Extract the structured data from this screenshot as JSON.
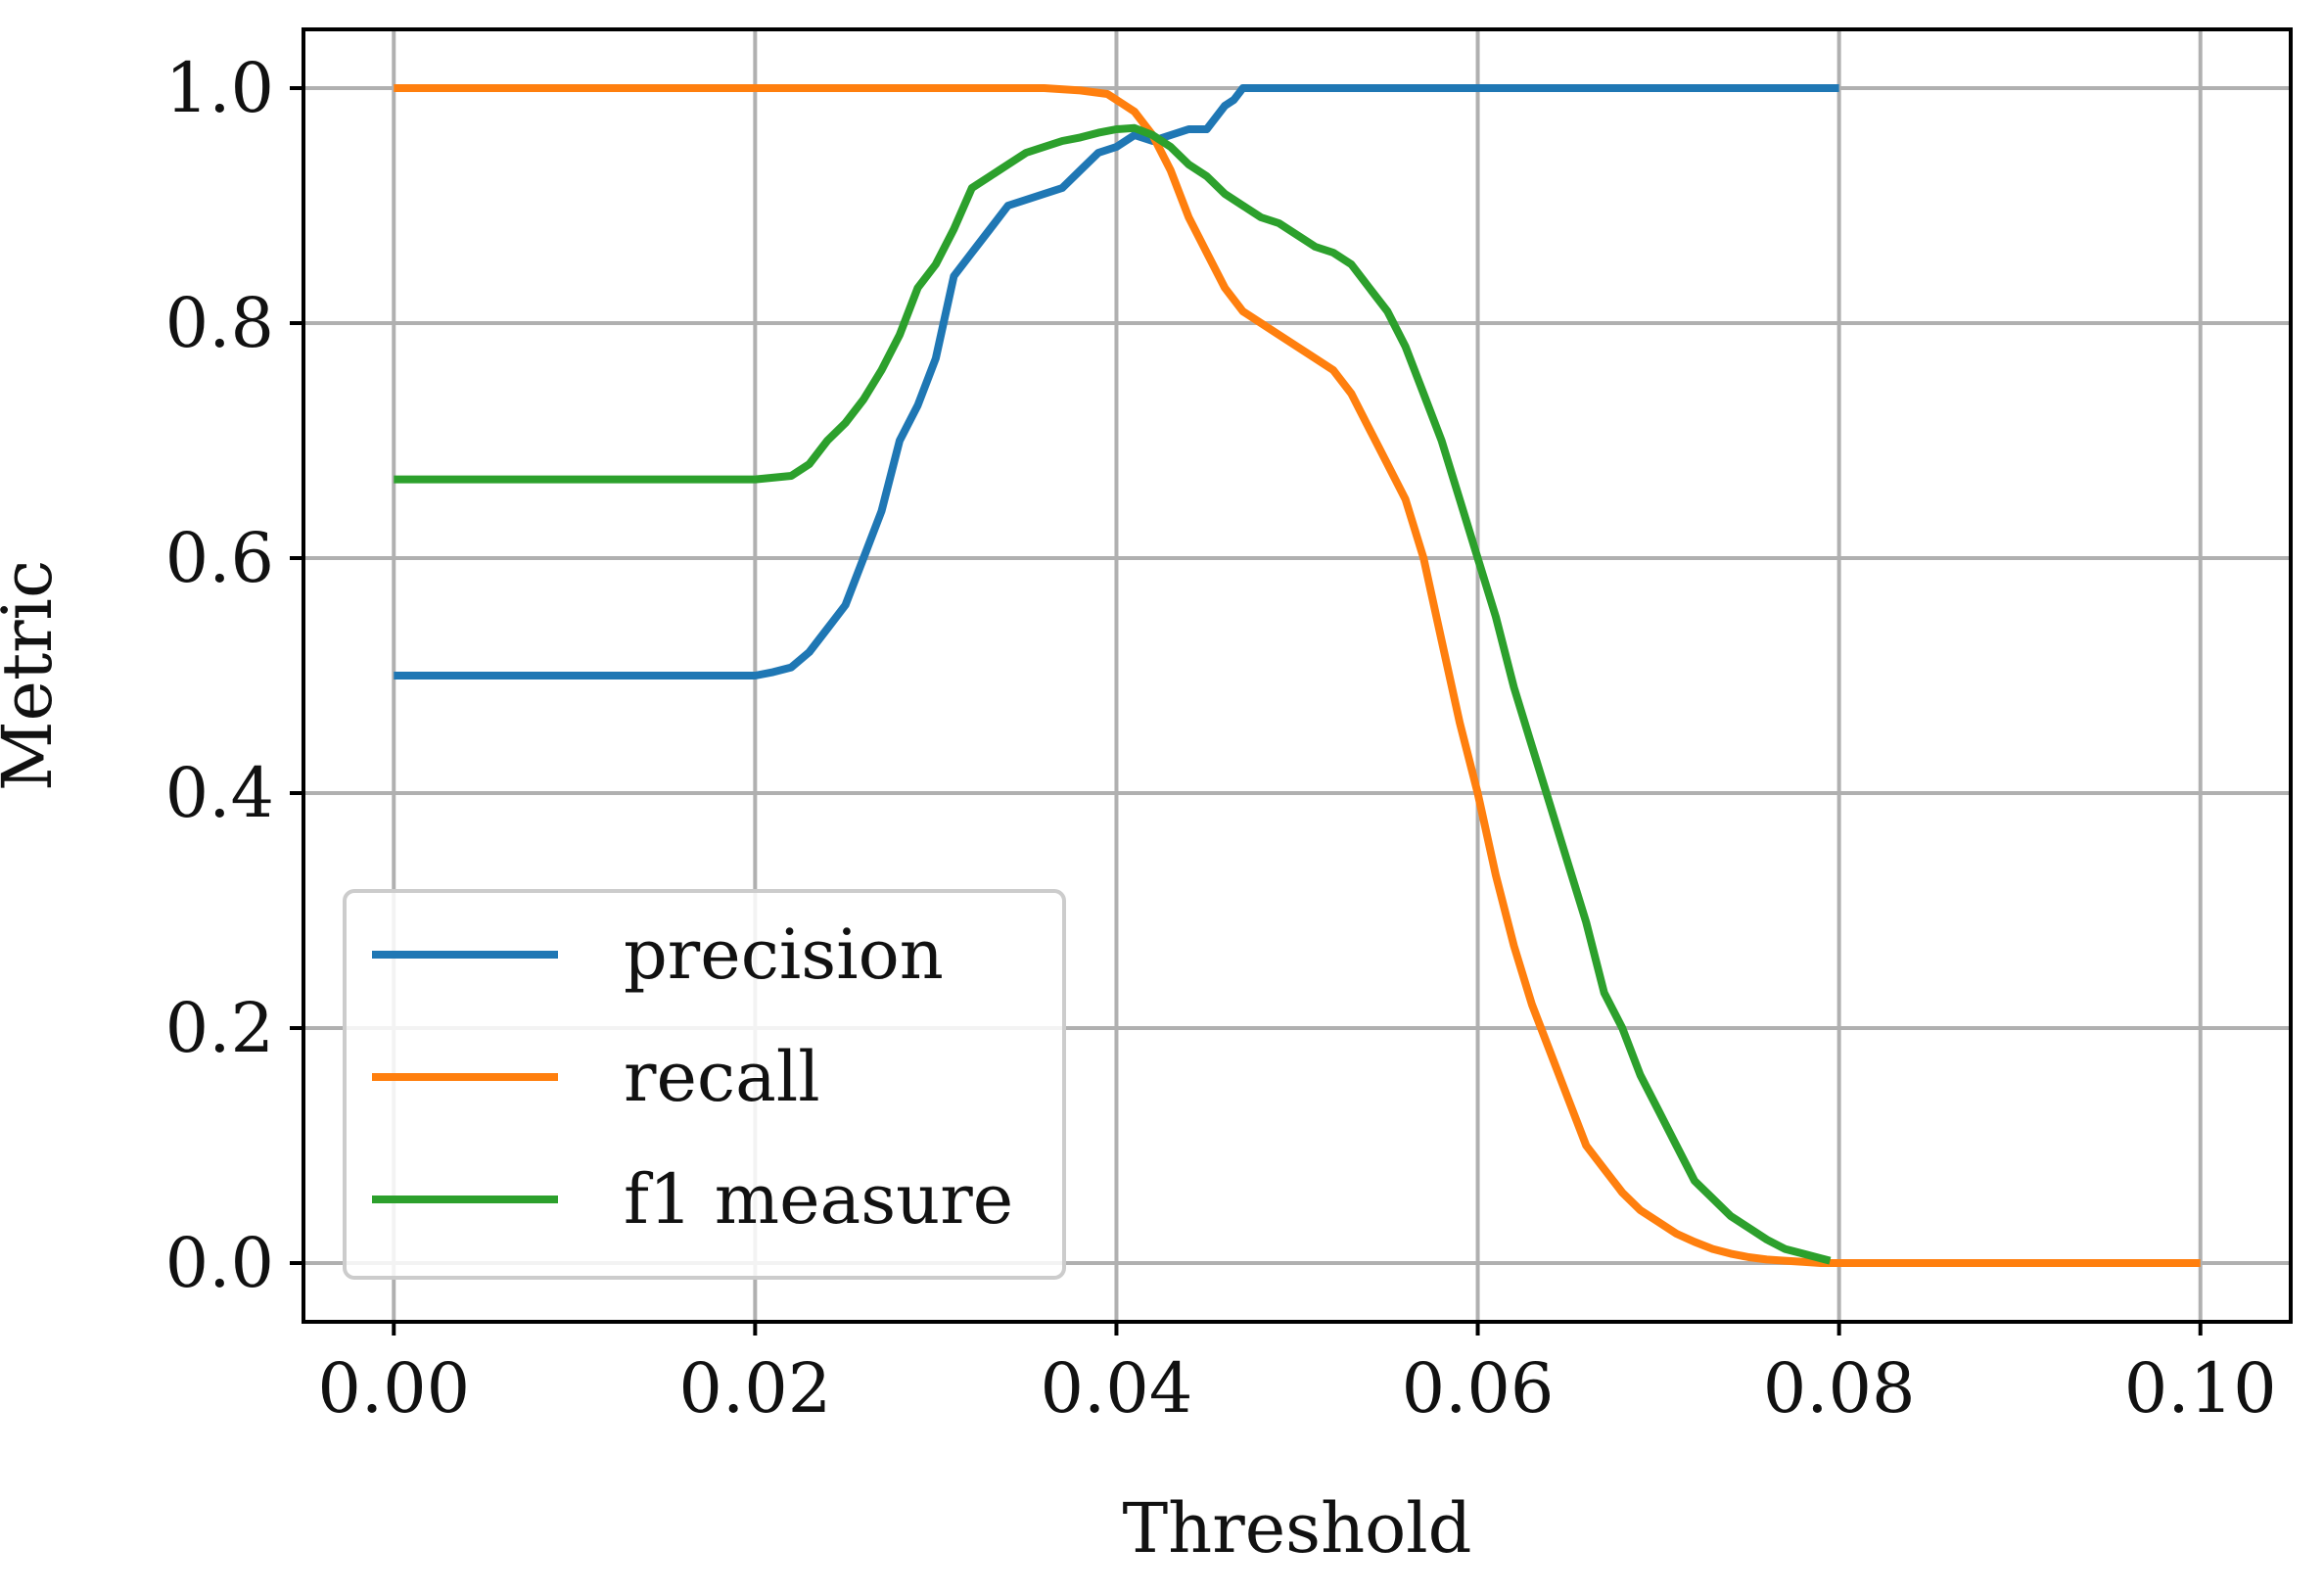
{
  "chart_data": {
    "type": "line",
    "title": "",
    "xlabel": "Threshold",
    "ylabel": "Metric",
    "xlim": [
      -0.005,
      0.105
    ],
    "ylim": [
      -0.05,
      1.05
    ],
    "xticks": [
      0.0,
      0.02,
      0.04,
      0.06,
      0.08,
      0.1
    ],
    "xtick_labels": [
      "0.00",
      "0.02",
      "0.04",
      "0.06",
      "0.08",
      "0.10"
    ],
    "yticks": [
      0.0,
      0.2,
      0.4,
      0.6,
      0.8,
      1.0
    ],
    "ytick_labels": [
      "0.0",
      "0.2",
      "0.4",
      "0.6",
      "0.8",
      "1.0"
    ],
    "grid": true,
    "legend_position": "lower-left",
    "series": [
      {
        "name": "precision",
        "color": "#1f77b4",
        "x": [
          0.0,
          0.02,
          0.021,
          0.022,
          0.023,
          0.024,
          0.025,
          0.026,
          0.027,
          0.028,
          0.029,
          0.03,
          0.031,
          0.032,
          0.033,
          0.034,
          0.035,
          0.036,
          0.037,
          0.038,
          0.039,
          0.04,
          0.041,
          0.042,
          0.043,
          0.044,
          0.045,
          0.046,
          0.0465,
          0.047,
          0.08
        ],
        "y": [
          0.5,
          0.5,
          0.503,
          0.507,
          0.52,
          0.54,
          0.56,
          0.6,
          0.64,
          0.7,
          0.73,
          0.77,
          0.84,
          0.86,
          0.88,
          0.9,
          0.905,
          0.91,
          0.915,
          0.93,
          0.945,
          0.95,
          0.96,
          0.955,
          0.96,
          0.965,
          0.965,
          0.985,
          0.99,
          1.0,
          1.0
        ]
      },
      {
        "name": "recall",
        "color": "#ff7f0e",
        "x": [
          0.0,
          0.036,
          0.038,
          0.0395,
          0.04,
          0.041,
          0.042,
          0.043,
          0.044,
          0.045,
          0.046,
          0.047,
          0.048,
          0.049,
          0.05,
          0.051,
          0.052,
          0.053,
          0.054,
          0.055,
          0.056,
          0.057,
          0.058,
          0.059,
          0.06,
          0.061,
          0.062,
          0.063,
          0.064,
          0.065,
          0.066,
          0.067,
          0.068,
          0.069,
          0.07,
          0.071,
          0.072,
          0.073,
          0.074,
          0.075,
          0.076,
          0.077,
          0.078,
          0.079,
          0.08,
          0.1
        ],
        "y": [
          1.0,
          1.0,
          0.998,
          0.995,
          0.99,
          0.98,
          0.96,
          0.93,
          0.89,
          0.86,
          0.83,
          0.81,
          0.8,
          0.79,
          0.78,
          0.77,
          0.76,
          0.74,
          0.71,
          0.68,
          0.65,
          0.6,
          0.53,
          0.46,
          0.4,
          0.33,
          0.27,
          0.22,
          0.18,
          0.14,
          0.1,
          0.08,
          0.06,
          0.045,
          0.035,
          0.025,
          0.018,
          0.012,
          0.008,
          0.005,
          0.003,
          0.002,
          0.001,
          0.0,
          0.0,
          0.0
        ]
      },
      {
        "name": "f1 measure",
        "color": "#2ca02c",
        "x": [
          0.0,
          0.02,
          0.022,
          0.023,
          0.024,
          0.025,
          0.026,
          0.027,
          0.028,
          0.029,
          0.03,
          0.031,
          0.032,
          0.033,
          0.034,
          0.035,
          0.036,
          0.037,
          0.038,
          0.039,
          0.04,
          0.041,
          0.042,
          0.043,
          0.044,
          0.045,
          0.046,
          0.047,
          0.048,
          0.049,
          0.05,
          0.051,
          0.052,
          0.053,
          0.054,
          0.055,
          0.056,
          0.057,
          0.058,
          0.059,
          0.06,
          0.061,
          0.062,
          0.063,
          0.064,
          0.065,
          0.066,
          0.067,
          0.068,
          0.069,
          0.07,
          0.071,
          0.072,
          0.073,
          0.074,
          0.075,
          0.076,
          0.077,
          0.078,
          0.079,
          0.0795
        ],
        "y": [
          0.667,
          0.667,
          0.67,
          0.68,
          0.7,
          0.715,
          0.735,
          0.76,
          0.79,
          0.83,
          0.85,
          0.88,
          0.915,
          0.925,
          0.935,
          0.945,
          0.95,
          0.955,
          0.958,
          0.962,
          0.965,
          0.966,
          0.96,
          0.95,
          0.935,
          0.925,
          0.91,
          0.9,
          0.89,
          0.885,
          0.875,
          0.865,
          0.86,
          0.85,
          0.83,
          0.81,
          0.78,
          0.74,
          0.7,
          0.65,
          0.6,
          0.55,
          0.49,
          0.44,
          0.39,
          0.34,
          0.29,
          0.23,
          0.2,
          0.16,
          0.13,
          0.1,
          0.07,
          0.055,
          0.04,
          0.03,
          0.02,
          0.012,
          0.008,
          0.004,
          0.002
        ]
      }
    ]
  }
}
